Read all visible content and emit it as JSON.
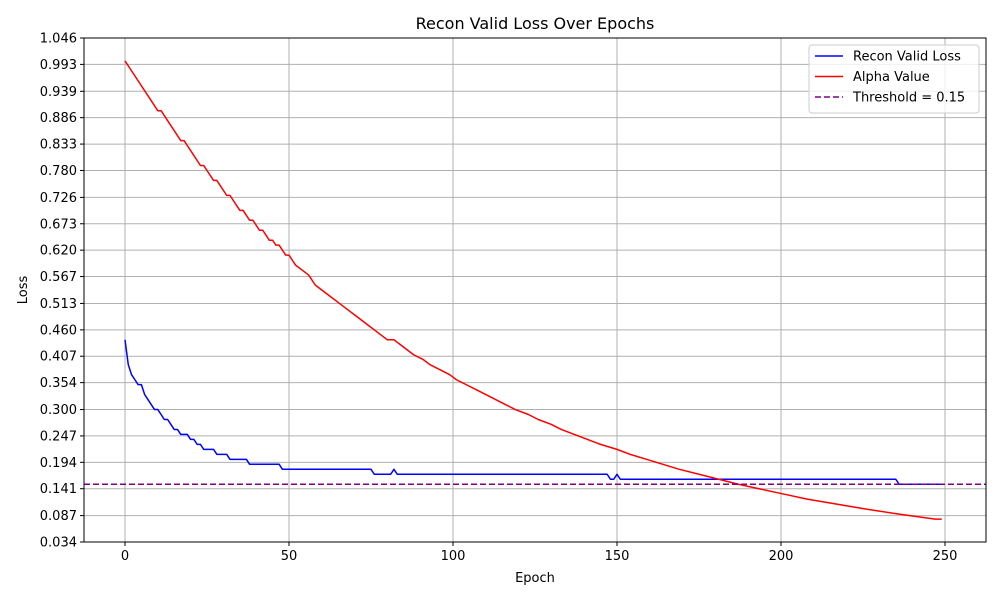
{
  "chart_data": {
    "type": "line",
    "title": "Recon Valid Loss Over Epochs",
    "xlabel": "Epoch",
    "ylabel": "Loss",
    "xlim": [
      -12.5,
      262.5
    ],
    "ylim": [
      0.034,
      1.046
    ],
    "xticks": [
      0,
      50,
      100,
      150,
      200,
      250
    ],
    "xtick_labels": [
      "0",
      "50",
      "100",
      "150",
      "200",
      "250"
    ],
    "yticks": [
      0.034,
      0.087,
      0.141,
      0.194,
      0.247,
      0.3,
      0.354,
      0.407,
      0.46,
      0.513,
      0.567,
      0.62,
      0.673,
      0.726,
      0.78,
      0.833,
      0.886,
      0.939,
      0.993,
      1.046
    ],
    "ytick_labels": [
      "0.034",
      "0.087",
      "0.141",
      "0.194",
      "0.247",
      "0.300",
      "0.354",
      "0.407",
      "0.460",
      "0.513",
      "0.567",
      "0.620",
      "0.673",
      "0.726",
      "0.780",
      "0.833",
      "0.886",
      "0.939",
      "0.993",
      "1.046"
    ],
    "grid": true,
    "legend_position": "top-right",
    "series": [
      {
        "name": "Recon Valid Loss",
        "color": "#0000ff",
        "style": "solid",
        "x": [
          0,
          1,
          2,
          3,
          4,
          5,
          6,
          7,
          8,
          9,
          10,
          11,
          12,
          13,
          14,
          15,
          16,
          17,
          18,
          19,
          20,
          21,
          22,
          23,
          24,
          25,
          26,
          27,
          28,
          29,
          30,
          31,
          32,
          33,
          34,
          35,
          36,
          37,
          38,
          39,
          40,
          47,
          48,
          49,
          60,
          70,
          75,
          76,
          77,
          80,
          81,
          82,
          83,
          84,
          90,
          100,
          120,
          140,
          147,
          148,
          149,
          150,
          151,
          152,
          160,
          180,
          200,
          220,
          235,
          236,
          237,
          250
        ],
        "y": [
          0.44,
          0.39,
          0.37,
          0.36,
          0.35,
          0.35,
          0.33,
          0.32,
          0.31,
          0.3,
          0.3,
          0.29,
          0.28,
          0.28,
          0.27,
          0.26,
          0.26,
          0.25,
          0.25,
          0.25,
          0.24,
          0.24,
          0.23,
          0.23,
          0.22,
          0.22,
          0.22,
          0.22,
          0.21,
          0.21,
          0.21,
          0.21,
          0.2,
          0.2,
          0.2,
          0.2,
          0.2,
          0.2,
          0.19,
          0.19,
          0.19,
          0.19,
          0.18,
          0.18,
          0.18,
          0.18,
          0.18,
          0.17,
          0.17,
          0.17,
          0.17,
          0.18,
          0.17,
          0.17,
          0.17,
          0.17,
          0.17,
          0.17,
          0.17,
          0.16,
          0.16,
          0.17,
          0.16,
          0.16,
          0.16,
          0.16,
          0.16,
          0.16,
          0.16,
          0.15,
          0.15,
          0.15
        ]
      },
      {
        "name": "Alpha Value",
        "color": "#ff0000",
        "style": "solid",
        "x": [
          0,
          10,
          11,
          17,
          18,
          23,
          24,
          27,
          28,
          31,
          32,
          35,
          36,
          38,
          39,
          41,
          42,
          44,
          45,
          46,
          47,
          49,
          50,
          51,
          52,
          54,
          56,
          58,
          60,
          62,
          64,
          66,
          68,
          70,
          72,
          74,
          76,
          78,
          80,
          82,
          84,
          86,
          88,
          91,
          93,
          96,
          99,
          101,
          104,
          107,
          110,
          113,
          116,
          119,
          123,
          126,
          130,
          133,
          137,
          141,
          145,
          150,
          154,
          159,
          164,
          169,
          175,
          181,
          187,
          194,
          201,
          208,
          217,
          226,
          236,
          247,
          249
        ],
        "y": [
          1.0,
          0.9,
          0.9,
          0.84,
          0.84,
          0.79,
          0.79,
          0.76,
          0.76,
          0.73,
          0.73,
          0.7,
          0.7,
          0.68,
          0.68,
          0.66,
          0.66,
          0.64,
          0.64,
          0.63,
          0.63,
          0.61,
          0.61,
          0.6,
          0.59,
          0.58,
          0.57,
          0.55,
          0.54,
          0.53,
          0.52,
          0.51,
          0.5,
          0.49,
          0.48,
          0.47,
          0.46,
          0.45,
          0.44,
          0.44,
          0.43,
          0.42,
          0.41,
          0.4,
          0.39,
          0.38,
          0.37,
          0.36,
          0.35,
          0.34,
          0.33,
          0.32,
          0.31,
          0.3,
          0.29,
          0.28,
          0.27,
          0.26,
          0.25,
          0.24,
          0.23,
          0.22,
          0.21,
          0.2,
          0.19,
          0.18,
          0.17,
          0.16,
          0.15,
          0.14,
          0.13,
          0.12,
          0.11,
          0.1,
          0.09,
          0.08,
          0.08
        ],
        "step": true
      },
      {
        "name": "Threshold = 0.15",
        "color": "#800080",
        "style": "dashed",
        "y_constant": 0.15
      }
    ]
  }
}
